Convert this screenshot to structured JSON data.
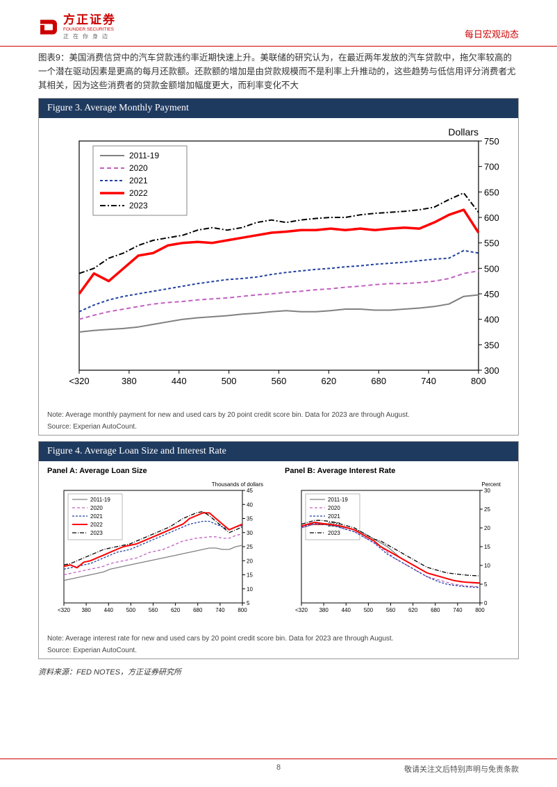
{
  "header": {
    "logo_cn": "方正证券",
    "logo_en": "FOUNDER SECURITIES",
    "logo_spaced": "正在你身边",
    "right": "每日宏观动态"
  },
  "chapter_label": "图表9：",
  "chapter_text": "美国消费信贷中的汽车贷款违约率近期快速上升。美联储的研究认为，在最近两年发放的汽车贷款中，拖欠率较高的一个潜在驱动因素是更高的每月还款额。还款额的增加是由贷款规模而不是利率上升推动的，这些趋势与低信用评分消费者尤其相关，因为这些消费者的贷款金额增加幅度更大，而利率变化不大",
  "figure3": {
    "title": "Figure 3. Average Monthly Payment",
    "y_label": "Dollars",
    "note": "Note: Average monthly payment for new and used cars by 20 point credit score bin. Data for 2023 are through August.",
    "source": "Source: Experian AutoCount.",
    "x_categories": [
      "<320",
      "380",
      "440",
      "500",
      "560",
      "620",
      "680",
      "740",
      "800"
    ],
    "y_ticks": [
      300,
      350,
      400,
      450,
      500,
      550,
      600,
      650,
      700,
      750
    ],
    "ylim": [
      300,
      750
    ],
    "legend": [
      "2011-19",
      "2020",
      "2021",
      "2022",
      "2023"
    ],
    "series_colors": {
      "2011-19": "#808080",
      "2020": "#c060c0",
      "2021": "#2040a0",
      "2022": "#ff0000",
      "2023": "#000000"
    },
    "series_dash": {
      "2011-19": "none",
      "2020": "6,4",
      "2021": "4,3",
      "2022": "none",
      "2023": "8,3,2,3"
    },
    "series_width": {
      "2011-19": 2,
      "2020": 2,
      "2021": 2,
      "2022": 3.5,
      "2023": 2
    },
    "data": {
      "2011-19": [
        375,
        378,
        380,
        382,
        385,
        390,
        395,
        400,
        403,
        405,
        407,
        410,
        412,
        415,
        417,
        415,
        415,
        417,
        420,
        420,
        418,
        418,
        420,
        422,
        425,
        430,
        445,
        448
      ],
      "2020": [
        400,
        408,
        415,
        420,
        425,
        430,
        433,
        435,
        438,
        440,
        442,
        445,
        448,
        450,
        453,
        455,
        458,
        460,
        463,
        465,
        468,
        470,
        470,
        472,
        475,
        480,
        490,
        495
      ],
      "2021": [
        415,
        428,
        438,
        445,
        450,
        455,
        460,
        465,
        470,
        474,
        478,
        480,
        483,
        488,
        492,
        495,
        498,
        500,
        503,
        505,
        508,
        510,
        512,
        515,
        518,
        520,
        535,
        530
      ],
      "2022": [
        450,
        490,
        475,
        500,
        525,
        530,
        545,
        550,
        552,
        550,
        555,
        560,
        565,
        570,
        572,
        575,
        575,
        578,
        575,
        578,
        575,
        578,
        580,
        578,
        590,
        605,
        615,
        570
      ],
      "2023": [
        490,
        500,
        520,
        530,
        545,
        555,
        560,
        565,
        575,
        580,
        575,
        580,
        590,
        595,
        590,
        595,
        598,
        600,
        600,
        605,
        608,
        610,
        612,
        615,
        620,
        635,
        648,
        610
      ]
    },
    "background_color": "#ffffff",
    "tick_fontsize": 14,
    "legend_fontsize": 12
  },
  "figure4": {
    "title": "Figure 4. Average Loan Size and Interest Rate",
    "note": "Note: Average interest rate for new and used cars by 20 point credit score bin. Data for 2023 are through August.",
    "source": "Source: Experian AutoCount.",
    "panelA": {
      "title": "Panel A: Average Loan Size",
      "y_label": "Thousands of dollars",
      "x_categories": [
        "<320",
        "380",
        "440",
        "500",
        "560",
        "620",
        "680",
        "740",
        "800"
      ],
      "y_ticks": [
        5,
        10,
        15,
        20,
        25,
        30,
        35,
        40,
        45
      ],
      "ylim": [
        5,
        45
      ],
      "data": {
        "2011-19": [
          13,
          13.5,
          14,
          14.5,
          15,
          15.5,
          16,
          17,
          17.5,
          18,
          18.5,
          19,
          19.5,
          20,
          20.5,
          21,
          21.5,
          22,
          22.5,
          23,
          23.5,
          24,
          24.5,
          24.5,
          24,
          24,
          25,
          25.5
        ],
        "2020": [
          15,
          15.5,
          16,
          16.5,
          17,
          17.5,
          18,
          19,
          19.5,
          20,
          20.5,
          21,
          22,
          23,
          23.5,
          24,
          25,
          26,
          27,
          27.5,
          28,
          28.2,
          28.5,
          28.5,
          28,
          28,
          29,
          29.5
        ],
        "2021": [
          17,
          17.5,
          18,
          18.5,
          19,
          20,
          21,
          22,
          23,
          23.5,
          24,
          25,
          26,
          27,
          28,
          29,
          30,
          31,
          32,
          33,
          33.5,
          34,
          34,
          33,
          32,
          31,
          32,
          32.5
        ],
        "2022": [
          18,
          18.5,
          17.5,
          19.5,
          20,
          21,
          22,
          23,
          24,
          25,
          25.5,
          26,
          27,
          28,
          29,
          30,
          31,
          32,
          33,
          35,
          36,
          37,
          37,
          35,
          33,
          31,
          32,
          33
        ],
        "2023": [
          18.5,
          19,
          20,
          21,
          22,
          23,
          24,
          24.5,
          25,
          25.5,
          26,
          27,
          28,
          29,
          30,
          31,
          32,
          33.5,
          35,
          36,
          37,
          37.5,
          36,
          34,
          32,
          30,
          31,
          32
        ]
      }
    },
    "panelB": {
      "title": "Panel B: Average Interest Rate",
      "y_label": "Percent",
      "x_categories": [
        "<320",
        "380",
        "440",
        "500",
        "560",
        "620",
        "680",
        "740",
        "800"
      ],
      "y_ticks": [
        0,
        5,
        10,
        15,
        20,
        25,
        30
      ],
      "ylim": [
        0,
        30
      ],
      "data": {
        "2011-19": [
          20,
          20.5,
          21,
          21,
          20.8,
          20.5,
          20.2,
          20,
          19.5,
          19,
          18,
          17,
          16,
          15,
          13.5,
          12,
          11,
          10,
          9,
          8,
          7.5,
          7,
          6.5,
          6,
          5.8,
          5.5,
          5.3,
          5.2
        ],
        "2020": [
          20,
          20.5,
          21,
          21.2,
          21,
          20.7,
          20,
          19.5,
          19,
          18,
          17,
          16,
          15,
          13.5,
          12,
          11,
          10,
          9,
          8,
          7,
          6.5,
          6,
          5.5,
          5,
          4.8,
          4.5,
          4.4,
          4.3
        ],
        "2021": [
          20.2,
          20.7,
          21.2,
          21,
          20.8,
          20.5,
          20,
          19.5,
          19,
          18,
          17,
          16,
          14.5,
          13,
          12,
          11,
          10,
          9,
          8,
          7,
          6.2,
          5.5,
          5,
          4.7,
          4.5,
          4.3,
          4.2,
          4.1
        ],
        "2022": [
          20.5,
          21,
          21.5,
          21.2,
          21,
          20.8,
          20.5,
          20,
          19.5,
          18.5,
          17.5,
          16.5,
          15,
          14,
          13,
          12,
          11,
          10,
          9,
          8,
          7.5,
          7,
          6.5,
          6,
          5.7,
          5.5,
          5.4,
          5.3
        ],
        "2023": [
          21,
          21.5,
          22,
          22,
          21.8,
          21.5,
          21,
          20.5,
          20,
          19,
          18,
          17,
          16.5,
          15.5,
          14.5,
          13.5,
          12.5,
          11.5,
          10.5,
          9.5,
          9,
          8.5,
          8,
          7.8,
          7.6,
          7.4,
          7.3,
          7.2
        ]
      }
    },
    "series_colors": {
      "2011-19": "#808080",
      "2020": "#c060c0",
      "2021": "#2040a0",
      "2022": "#ff0000",
      "2023": "#000000"
    },
    "series_dash": {
      "2011-19": "none",
      "2020": "4,3",
      "2021": "3,2",
      "2022": "none",
      "2023": "6,2,1,2"
    },
    "series_width": {
      "2011-19": 1.3,
      "2020": 1.3,
      "2021": 1.3,
      "2022": 2,
      "2023": 1.3
    },
    "legend": [
      "2011-19",
      "2020",
      "2021",
      "2022",
      "2023"
    ]
  },
  "source_cn": "资料来源：FED NOTES，方正证券研究所",
  "footer": {
    "page": "8",
    "right": "敬请关注文后特别声明与免责条款"
  },
  "colors": {
    "brand": "#cc0000",
    "figbar": "#1f3a5f"
  }
}
